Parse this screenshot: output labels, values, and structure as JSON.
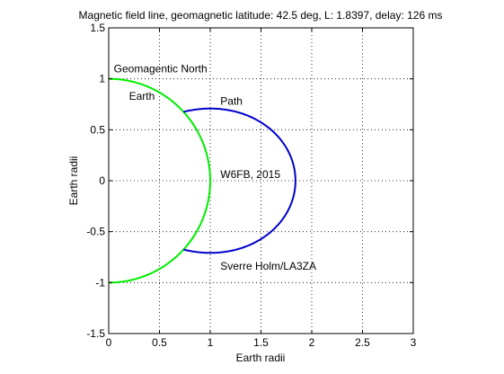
{
  "chart_data": {
    "type": "line",
    "title": "Magnetic field line, geomagnetic latitude: 42.5 deg, L: 1.8397, delay: 126 ms",
    "xlabel": "Earth radii",
    "ylabel": "Earth radii",
    "xlim": [
      0,
      3
    ],
    "ylim": [
      -1.5,
      1.5
    ],
    "xticks": [
      0,
      0.5,
      1,
      1.5,
      2,
      2.5,
      3
    ],
    "xtick_labels": [
      "0",
      "0.5",
      "1",
      "1.5",
      "2",
      "2.5",
      "3"
    ],
    "yticks": [
      -1.5,
      -1,
      -0.5,
      0,
      0.5,
      1,
      1.5
    ],
    "ytick_labels": [
      "-1.5",
      "-1",
      "-0.5",
      "0",
      "0.5",
      "1",
      "1.5"
    ],
    "grid": true,
    "series": [
      {
        "curve": "earth",
        "color": "#00ee00",
        "description": "half circle of radius 1 from (0,1) to (0,-1)",
        "radius": 1,
        "theta_range_deg": [
          -90,
          90
        ]
      },
      {
        "curve": "field_line",
        "color": "#0000cc",
        "description": "dipole field line r = L cos^2(lat) outside Earth",
        "L": 1.8397,
        "latitude_deg": 42.5
      }
    ],
    "annotations": [
      {
        "text": "Geomagentic North",
        "x": 0.05,
        "y": 1.1
      },
      {
        "text": "Earth",
        "x": 0.2,
        "y": 0.83
      },
      {
        "text": "Path",
        "x": 1.1,
        "y": 0.78
      },
      {
        "text": "W6FB, 2015",
        "x": 1.1,
        "y": 0.06
      },
      {
        "text": "Sverre Holm/LA3ZA",
        "x": 1.1,
        "y": -0.84
      }
    ]
  }
}
